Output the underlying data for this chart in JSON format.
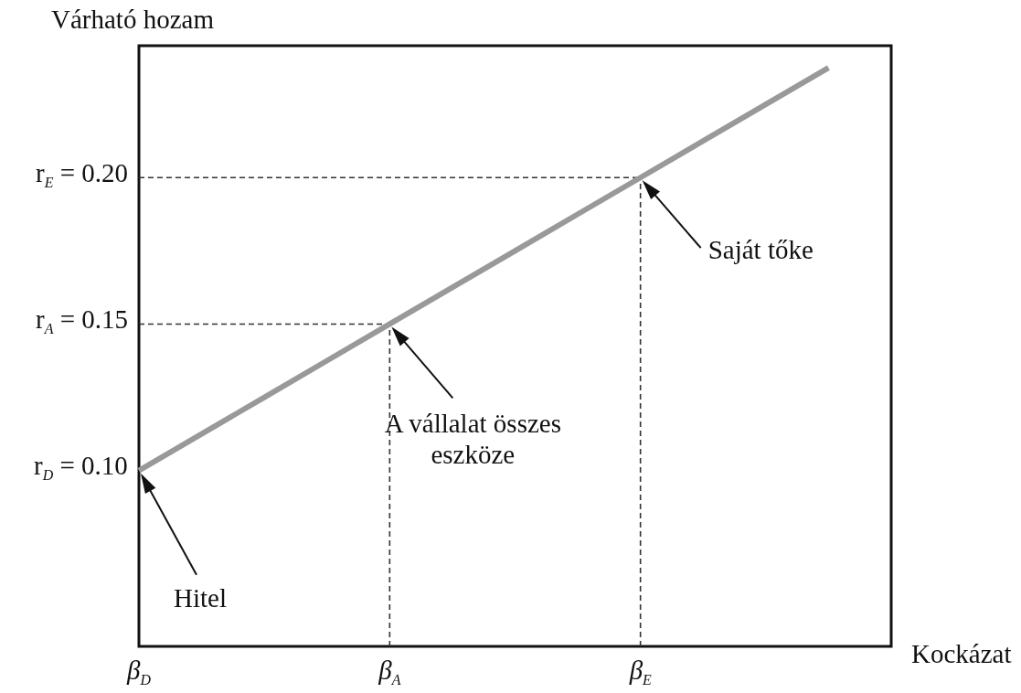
{
  "chart_data": {
    "type": "line",
    "ylabel": "Várható hozam",
    "xlabel": "Kockázat",
    "categories": [
      "β$_{D}$",
      null,
      null,
      null,
      "β$_{A}$",
      null,
      null,
      null,
      "β$_{E}$",
      null,
      null,
      null,
      null
    ],
    "ylim": [
      0.04,
      0.245
    ],
    "yticks": [
      {
        "value": 0.1,
        "label": "r$_{D}$ = 0.10"
      },
      {
        "value": 0.15,
        "label": "r$_{A}$ = 0.15"
      },
      {
        "value": 0.2,
        "label": "r$_{E}$ = 0.20"
      }
    ],
    "series": [
      {
        "values": [
          0.1,
          0.1125,
          0.125,
          0.1375,
          0.15,
          0.1625,
          0.175,
          0.1875,
          0.2,
          0.2125,
          0.225,
          0.2375,
          null
        ],
        "color": "#999999",
        "line_style": "solid"
      }
    ],
    "ref_lines": [
      {
        "axis": "y",
        "value": 0.15,
        "color": "#333333",
        "line_style": "dashed"
      },
      {
        "axis": "y",
        "value": 0.2,
        "color": "#333333",
        "line_style": "dashed"
      },
      {
        "axis": "x",
        "value": "β$_{A}$",
        "color": "#333333",
        "line_style": "dashed"
      },
      {
        "axis": "x",
        "value": "β$_{E}$",
        "color": "#333333",
        "line_style": "dashed"
      }
    ],
    "marker": "none",
    "annotations": [
      "Hitel",
      "A vállalat összes eszköze",
      "Saját tőke"
    ]
  }
}
